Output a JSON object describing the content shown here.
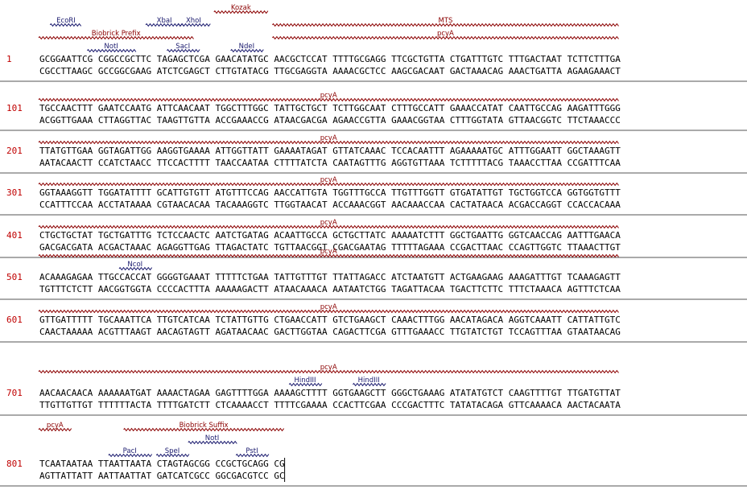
{
  "colors": {
    "feature": "#8b0000",
    "site": "#1a1a6e",
    "position": "#c00000",
    "separator": "#555555"
  },
  "blocks": [
    {
      "pos": "1",
      "top": "GCGGAATTCG CGGCCGCTTC TAGAGCTCGA GAACATATGC AACGCTCCAT TTTTGCGAGG TTCGCTGTTA CTGATTTGTC TTTGACTAAT TCTTCTTTGA",
      "bottom": "CGCCTTAAGC GCCGGCGAAG ATCTCGAGCT CTTGTATACG TTGCGAGGTA AAAACGCTCC AAGCGACAAT GACTAAACAG AAACTGATTA AGAAGAAACT",
      "features": [
        {
          "label": "Kozak",
          "start": 31,
          "end": 40,
          "row": 0
        },
        {
          "label": "MTS",
          "start": 41,
          "end": 100,
          "row": 1
        },
        {
          "label": "Biobrick Prefix",
          "start": 1,
          "end": 27,
          "row": 2
        },
        {
          "label": "pcyA",
          "start": 41,
          "end": 100,
          "row": 2
        }
      ],
      "sites": [
        {
          "label": "EcoRI",
          "start": 3,
          "end": 8,
          "row": 1
        },
        {
          "label": "XbaI",
          "start": 20,
          "end": 25,
          "row": 1
        },
        {
          "label": "XhoI",
          "start": 25,
          "end": 30,
          "row": 1
        },
        {
          "label": "NotI",
          "start": 10,
          "end": 17,
          "row": 3
        },
        {
          "label": "SacI",
          "start": 23,
          "end": 28,
          "row": 3
        },
        {
          "label": "NdeI",
          "start": 34,
          "end": 39,
          "row": 3
        }
      ]
    },
    {
      "pos": "101",
      "top": "TGCCAACTTT GAATCCAATG ATTCAACAAT TGGCTTTGGC TATTGCTGCT TCTTGGCAAT CTTTGCCATT GAAACCATAT CAATTGCCAG AAGATTTGGG",
      "bottom": "ACGGTTGAAA CTTAGGTTAC TAAGTTGTTA ACCGAAACCG ATAACGACGA AGAACCGTTA GAAACGGTAA CTTTGGTATA GTTAACGGTC TTCTAAACCC",
      "features": [
        {
          "label": "pcyA",
          "start": 1,
          "end": 100,
          "row": 0
        }
      ],
      "sites": []
    },
    {
      "pos": "201",
      "top": "TTATGTTGAA GGTAGATTGG AAGGTGAAAA ATTGGTTATT GAAAATAGAT GTTATCAAAC TCCACAATTT AGAAAAATGC ATTTGGAATT GGCTAAAGTT",
      "bottom": "AATACAACTT CCATCTAACC TTCCACTTTT TAACCAATAA CTTTTATCTA CAATAGTTTG AGGTGTTAAA TCTTTTTACG TAAACCTTAA CCGATTTCAA",
      "features": [
        {
          "label": "pcyA",
          "start": 1,
          "end": 100,
          "row": 0
        }
      ],
      "sites": []
    },
    {
      "pos": "301",
      "top": "GGTAAAGGTT TGGATATTTT GCATTGTGTT ATGTTTCCAG AACCATTGTA TGGTTTGCCA TTGTTTGGTT GTGATATTGT TGCTGGTCCA GGTGGTGTTT",
      "bottom": "CCATTTCCAA ACCTATAAAA CGTAACACAA TACAAAGGTC TTGGTAACAT ACCAAACGGT AACAAACCAA CACTATAACA ACGACCAGGT CCACCACAAA",
      "features": [
        {
          "label": "pcyA",
          "start": 1,
          "end": 100,
          "row": 0
        }
      ],
      "sites": []
    },
    {
      "pos": "401",
      "top": "CTGCTGCTAT TGCTGATTTG TCTCCAACTC AATCTGATAG ACAATTGCCA GCTGCTTATC AAAAATCTTT GGCTGAATTG GGTCAACCAG AATTTGAACA",
      "bottom": "GACGACGATA ACGACTAAAC AGAGGTTGAG TTAGACTATC TGTTAACGGT CGACGAATAG TTTTTAGAAA CCGACTTAAC CCAGTTGGTC TTAAACTTGT",
      "features": [
        {
          "label": "pcyA",
          "start": 1,
          "end": 100,
          "row": 0
        }
      ],
      "sites": []
    },
    {
      "pos": "501",
      "top": "ACAAAGAGAA TTGCCACCAT GGGGTGAAAT TTTTTCTGAA TATTGTTTGT TTATTAGACC ATCTAATGTT ACTGAAGAAG AAAGATTTGT TCAAAGAGTT",
      "bottom": "TGTTTCTCTT AACGGTGGTA CCCCACTTTA AAAAAGACTT ATAACAAACA AATAATCTGG TAGATTACAA TGACTTCTTC TTTCTAAACA AGTTTCTCAA",
      "features": [
        {
          "label": "pcyA",
          "start": 1,
          "end": 100,
          "row": 0
        }
      ],
      "sites": [
        {
          "label": "NcoI",
          "start": 15,
          "end": 20,
          "row": 1
        }
      ]
    },
    {
      "pos": "601",
      "top": "GTTGATTTTT TGCAAATTCA TTGTCATCAA TCTATTGTTG CTGAACCATT GTCTGAAGCT CAAACTTTGG AACATAGACA AGGTCAAATT CATTATTGTC",
      "bottom": "CAACTAAAAA ACGTTTAAGT AACAGTAGTT AGATAACAAC GACTTGGTAA CAGACTTCGA GTTTGAAACC TTGTATCTGT TCCAGTTTAA GTAATAACAG",
      "features": [
        {
          "label": "pcyA",
          "start": 1,
          "end": 100,
          "row": 0
        }
      ],
      "sites": []
    },
    {
      "pos": "701",
      "top": "AACAACAACA AAAAAATGAT AAAACTAGAA GAGTTTTGGA AAAAGCTTTT GGTGAAGCTT GGGCTGAAAG ATATATGTCT CAAGTTTTGT TTGATGTTAT",
      "bottom": "TTGTTGTTGT TTTTTTACTA TTTTGATCTT CTCAAAACCT TTTTCGAAAA CCACTTCGAA CCCGACTTTC TATATACAGA GTTCAAAACA AACTACAATA",
      "features": [
        {
          "label": "pcyA",
          "start": 1,
          "end": 100,
          "row": 0
        }
      ],
      "sites": [
        {
          "label": "HindIII",
          "start": 44,
          "end": 49,
          "row": 1
        },
        {
          "label": "HindIII",
          "start": 55,
          "end": 60,
          "row": 1
        }
      ]
    },
    {
      "pos": "801",
      "top": "TCAATAATAA TTAATTAATA CTAGTAGCGG CCGCTGCAGG CG",
      "bottom": "AGTTATTATT AATTAATTAT GATCATCGCC GGCGACGTCC GC",
      "features": [
        {
          "label": "pcyA",
          "start": 1,
          "end": 6,
          "row": 0
        },
        {
          "label": "Biobrick Suffix",
          "start": 16,
          "end": 42,
          "row": 0
        }
      ],
      "sites": [
        {
          "label": "NotI",
          "start": 27,
          "end": 34,
          "row": 1
        },
        {
          "label": "PacI",
          "start": 13,
          "end": 20,
          "row": 2
        },
        {
          "label": "SpeI",
          "start": 21,
          "end": 26,
          "row": 2
        },
        {
          "label": "PstI",
          "start": 35,
          "end": 40,
          "row": 2
        }
      ]
    }
  ]
}
